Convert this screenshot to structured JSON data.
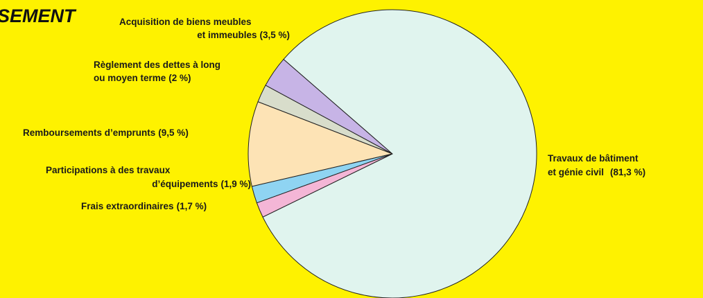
{
  "chart_data": {
    "type": "pie",
    "title": "SEMENT",
    "categories": [
      [
        "Acquisition de biens meubles",
        "et immeubles"
      ],
      [
        "Règlement des dettes à long",
        "ou moyen terme"
      ],
      [
        "Remboursements d’emprunts"
      ],
      [
        "Participations à des travaux",
        "d’équipements"
      ],
      [
        "Frais extraordinaires"
      ],
      [
        "Travaux de bâtiment",
        "et génie civil"
      ]
    ],
    "values": [
      3.5,
      2,
      9.5,
      1.9,
      1.7,
      81.3
    ],
    "value_labels": [
      "(3,5 %)",
      "(2 %)",
      "(9,5 %)",
      "(1,9 %)",
      "(1,7 %)",
      "(81,3 %)"
    ],
    "colors": [
      "#c7b4e6",
      "#d8ddcb",
      "#fde3b5",
      "#8fd4f2",
      "#f4b6d6",
      "#e0f4ee"
    ]
  }
}
